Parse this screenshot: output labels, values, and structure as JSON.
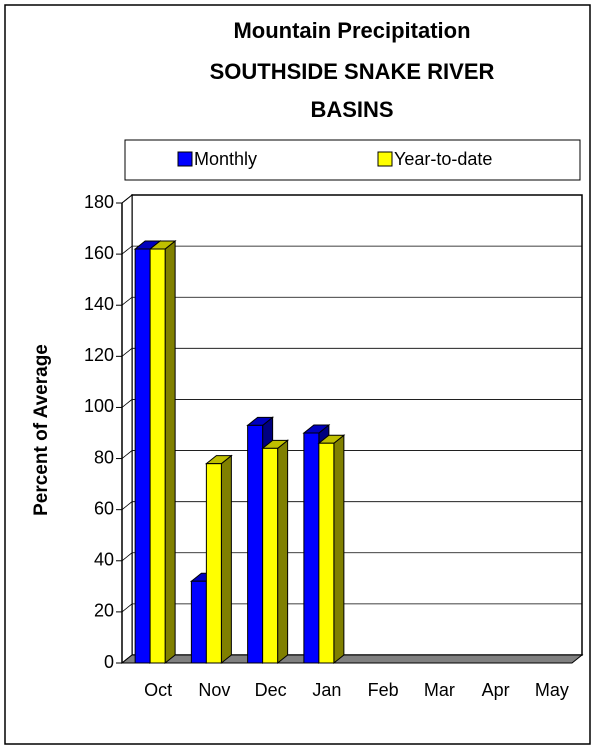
{
  "chart_data": {
    "type": "bar3d",
    "title": [
      "Mountain Precipitation",
      "SOUTHSIDE SNAKE RIVER",
      "BASINS"
    ],
    "y_label": "Percent of Average",
    "categories": [
      "Oct",
      "Nov",
      "Dec",
      "Jan",
      "Feb",
      "Mar",
      "Apr",
      "May"
    ],
    "series": [
      {
        "name": "Monthly",
        "color": "#0000ff",
        "values": [
          162,
          32,
          93,
          90,
          null,
          null,
          null,
          null
        ]
      },
      {
        "name": "Year-to-date",
        "color": "#ffff00",
        "values": [
          162,
          78,
          84,
          86,
          null,
          null,
          null,
          null
        ]
      }
    ],
    "ylim": [
      0,
      180
    ],
    "yticks": [
      0,
      20,
      40,
      60,
      80,
      100,
      120,
      140,
      160,
      180
    ],
    "grid": true
  }
}
